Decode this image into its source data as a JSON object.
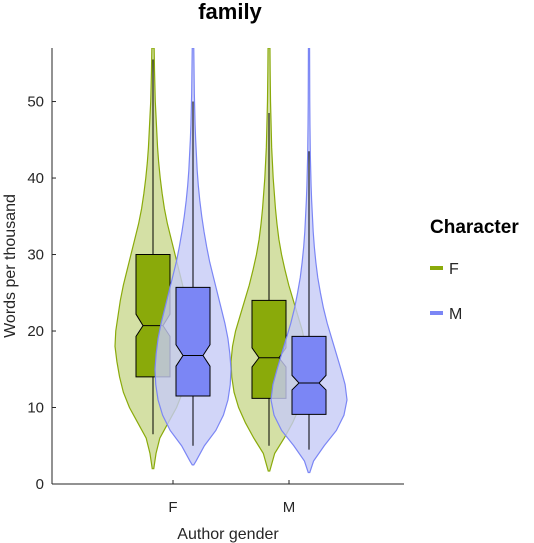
{
  "chart_data": {
    "type": "violin",
    "title": "family",
    "xlabel": "Author gender",
    "ylabel": "Words per thousand",
    "categories": [
      "F",
      "M"
    ],
    "ylim": [
      0,
      57
    ],
    "yticks": [
      0,
      10,
      20,
      30,
      40,
      50
    ],
    "legend": {
      "title": "Character",
      "placement": "right"
    },
    "series": [
      {
        "name": "F",
        "color": "#8aaa0a",
        "fill": "#c9d88e",
        "groups": [
          {
            "category": "F",
            "min": 6.5,
            "q1": 14,
            "median": 20.7,
            "q3": 30,
            "max": 55.5,
            "notch_low": 19.3,
            "notch_high": 22.2,
            "density": [
              [
                2,
                0.02
              ],
              [
                4,
                0.08
              ],
              [
                6,
                0.18
              ],
              [
                8,
                0.4
              ],
              [
                10,
                0.62
              ],
              [
                12,
                0.78
              ],
              [
                14,
                0.88
              ],
              [
                16,
                0.95
              ],
              [
                18,
                1.0
              ],
              [
                20,
                0.98
              ],
              [
                22,
                0.92
              ],
              [
                24,
                0.86
              ],
              [
                26,
                0.78
              ],
              [
                28,
                0.68
              ],
              [
                30,
                0.58
              ],
              [
                32,
                0.48
              ],
              [
                34,
                0.38
              ],
              [
                36,
                0.3
              ],
              [
                38,
                0.24
              ],
              [
                40,
                0.19
              ],
              [
                42,
                0.15
              ],
              [
                44,
                0.12
              ],
              [
                46,
                0.1
              ],
              [
                48,
                0.08
              ],
              [
                50,
                0.06
              ],
              [
                52,
                0.05
              ],
              [
                54,
                0.04
              ],
              [
                57,
                0.03
              ]
            ]
          },
          {
            "category": "M",
            "min": 5,
            "q1": 11.2,
            "median": 16.5,
            "q3": 24,
            "max": 48.5,
            "notch_low": 15.3,
            "notch_high": 17.8,
            "density": [
              [
                1.7,
                0.02
              ],
              [
                4,
                0.15
              ],
              [
                6,
                0.4
              ],
              [
                8,
                0.62
              ],
              [
                10,
                0.8
              ],
              [
                12,
                0.92
              ],
              [
                14,
                0.98
              ],
              [
                16,
                1.0
              ],
              [
                18,
                0.96
              ],
              [
                20,
                0.88
              ],
              [
                22,
                0.76
              ],
              [
                24,
                0.64
              ],
              [
                26,
                0.52
              ],
              [
                28,
                0.42
              ],
              [
                30,
                0.33
              ],
              [
                32,
                0.26
              ],
              [
                34,
                0.21
              ],
              [
                36,
                0.17
              ],
              [
                38,
                0.14
              ],
              [
                40,
                0.11
              ],
              [
                42,
                0.09
              ],
              [
                44,
                0.07
              ],
              [
                46,
                0.06
              ],
              [
                48,
                0.05
              ],
              [
                50,
                0.04
              ],
              [
                52,
                0.035
              ],
              [
                54,
                0.03
              ],
              [
                57,
                0.025
              ]
            ]
          }
        ]
      },
      {
        "name": "M",
        "color": "#7b86f5",
        "fill": "#c5caf6",
        "groups": [
          {
            "category": "F",
            "min": 5,
            "q1": 11.5,
            "median": 16.8,
            "q3": 25.7,
            "max": 50,
            "notch_low": 15.4,
            "notch_high": 18.2,
            "density": [
              [
                2.5,
                0.02
              ],
              [
                3,
                0.08
              ],
              [
                5,
                0.3
              ],
              [
                7,
                0.6
              ],
              [
                9,
                0.8
              ],
              [
                11,
                0.92
              ],
              [
                13,
                0.98
              ],
              [
                15,
                1.0
              ],
              [
                17,
                0.97
              ],
              [
                19,
                0.92
              ],
              [
                21,
                0.84
              ],
              [
                23,
                0.74
              ],
              [
                25,
                0.64
              ],
              [
                27,
                0.54
              ],
              [
                29,
                0.44
              ],
              [
                31,
                0.36
              ],
              [
                33,
                0.29
              ],
              [
                35,
                0.23
              ],
              [
                37,
                0.18
              ],
              [
                39,
                0.14
              ],
              [
                41,
                0.11
              ],
              [
                43,
                0.09
              ],
              [
                45,
                0.07
              ],
              [
                47,
                0.055
              ],
              [
                49,
                0.045
              ],
              [
                51,
                0.035
              ],
              [
                53,
                0.03
              ],
              [
                55,
                0.025
              ],
              [
                57,
                0.02
              ]
            ]
          },
          {
            "category": "M",
            "min": 4.5,
            "q1": 9.1,
            "median": 13.2,
            "q3": 19.3,
            "max": 43.5,
            "notch_low": 12.3,
            "notch_high": 14.2,
            "density": [
              [
                1.5,
                0.02
              ],
              [
                3,
                0.12
              ],
              [
                5,
                0.4
              ],
              [
                7,
                0.72
              ],
              [
                9,
                0.92
              ],
              [
                11,
                1.0
              ],
              [
                13,
                0.95
              ],
              [
                15,
                0.84
              ],
              [
                17,
                0.72
              ],
              [
                19,
                0.6
              ],
              [
                21,
                0.48
              ],
              [
                23,
                0.38
              ],
              [
                25,
                0.3
              ],
              [
                27,
                0.23
              ],
              [
                29,
                0.18
              ],
              [
                31,
                0.14
              ],
              [
                33,
                0.11
              ],
              [
                35,
                0.09
              ],
              [
                37,
                0.07
              ],
              [
                39,
                0.055
              ],
              [
                41,
                0.045
              ],
              [
                43,
                0.035
              ],
              [
                45,
                0.03
              ],
              [
                47,
                0.025
              ],
              [
                50,
                0.02
              ],
              [
                57,
                0.015
              ]
            ]
          }
        ]
      }
    ]
  }
}
